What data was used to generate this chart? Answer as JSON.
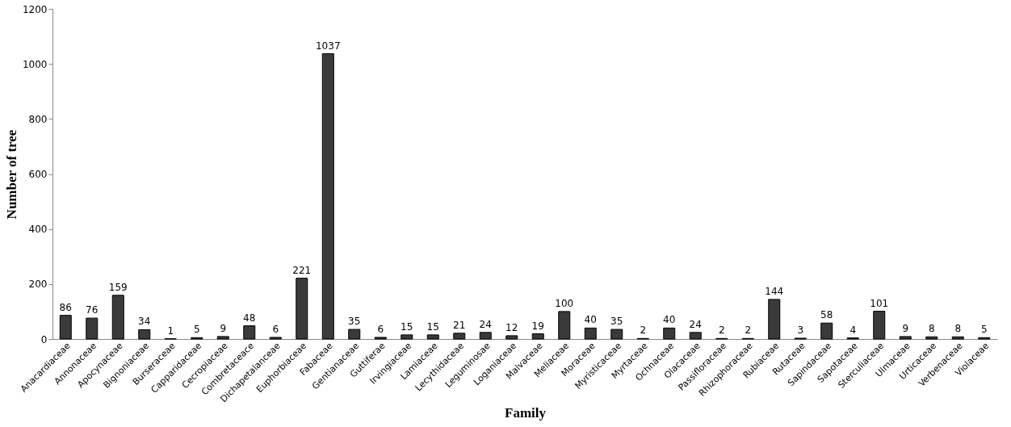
{
  "chart_data": {
    "type": "bar",
    "xlabel": "Family",
    "ylabel": "Number of tree",
    "categories": [
      "Anacardiaceae",
      "Annonaceae",
      "Apocynaceae",
      "Bignoniaceae",
      "Burseraceae",
      "Capparidaceae",
      "Cecropiaceae",
      "Combretaceace",
      "Dichapetalanceae",
      "Euphorbiaceae",
      "Fabaceae",
      "Gentianaceae",
      "Guttiferae",
      "Irvingiaceae",
      "Lamiaceae",
      "Lecythidaceae",
      "Leguminosae",
      "Loganiaceae",
      "Malvaceae",
      "Meliaceae",
      "Moraceae",
      "Myristicaceae",
      "Myrtaceae",
      "Ochnaceae",
      "Olacaceae",
      "Passifloraceae",
      "Rhizophoraceae",
      "Rubiaceae",
      "Rutaceae",
      "Sapindaceae",
      "Sapotaceae",
      "Sterculiaceae",
      "Ulmaceae",
      "Urticaceae",
      "Verbenaceae",
      "Violaceae"
    ],
    "values": [
      86,
      76,
      159,
      34,
      1,
      5,
      9,
      48,
      6,
      221,
      1037,
      35,
      6,
      15,
      15,
      21,
      24,
      12,
      19,
      100,
      40,
      35,
      2,
      40,
      24,
      2,
      2,
      144,
      3,
      58,
      4,
      101,
      9,
      8,
      8,
      5
    ],
    "color": "#3a3a3a",
    "ylim": [
      0,
      1200
    ],
    "yticks": [
      0,
      200,
      400,
      600,
      800,
      1000,
      1200
    ],
    "grid": false,
    "data_labels": true
  }
}
